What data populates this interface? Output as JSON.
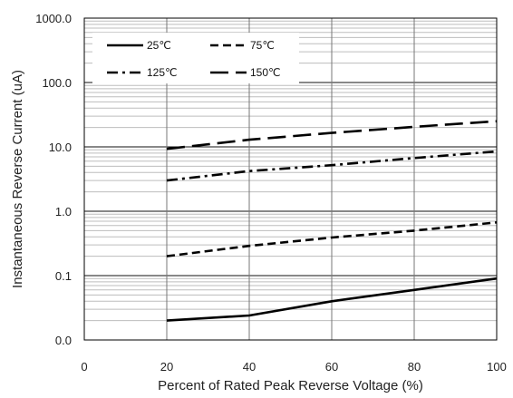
{
  "chart_data": {
    "type": "line",
    "title": "",
    "xlabel": "Percent of  Rated Peak Reverse Voltage (%)",
    "ylabel": "Instantaneous Reverse Current (uA)",
    "x_scale": "linear",
    "y_scale": "log",
    "xlim": [
      0,
      100
    ],
    "ylim": [
      0.01,
      1000
    ],
    "x_ticks": [
      0,
      20,
      40,
      60,
      80,
      100
    ],
    "x_tick_labels": [
      "0",
      "20",
      "40",
      "60",
      "80",
      "100"
    ],
    "y_ticks": [
      0.01,
      0.1,
      1,
      10,
      100,
      1000
    ],
    "y_tick_labels": [
      "0.0",
      "0.1",
      "1.0",
      "10.0",
      "100.0",
      "1000.0"
    ],
    "grid": true,
    "legend_position": "top-left",
    "x": [
      20,
      40,
      60,
      80,
      100
    ],
    "series": [
      {
        "name": "25℃",
        "dash": "solid",
        "values": [
          0.02,
          0.024,
          0.04,
          0.06,
          0.09
        ]
      },
      {
        "name": "75℃",
        "dash": "dashed",
        "values": [
          0.2,
          0.29,
          0.39,
          0.5,
          0.67
        ]
      },
      {
        "name": "125℃",
        "dash": "dash-dot",
        "values": [
          3.0,
          4.2,
          5.2,
          6.7,
          8.5
        ]
      },
      {
        "name": "150℃",
        "dash": "long-dash",
        "values": [
          9.3,
          12.9,
          16.5,
          20.5,
          25.0
        ]
      }
    ]
  }
}
